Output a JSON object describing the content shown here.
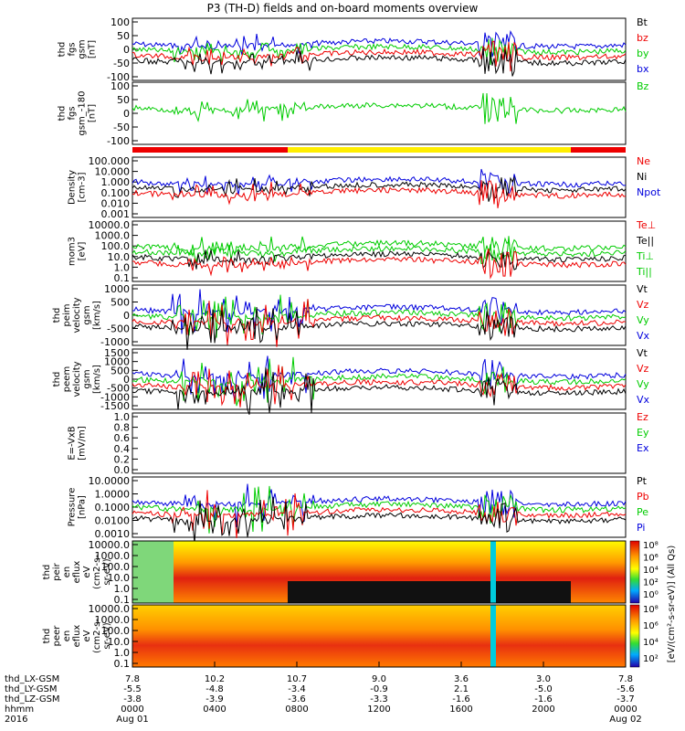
{
  "title": "P3 (TH-D) fields and on-board moments overview",
  "chart_data": {
    "type": "line",
    "title": "P3 (TH-D) fields and on-board moments overview",
    "time_ticks": [
      "0000",
      "0400",
      "0800",
      "1200",
      "1600",
      "2000",
      "0000"
    ],
    "date_start": "2016",
    "date_labels": [
      "Aug 01",
      "Aug 02"
    ],
    "position_rows": [
      {
        "label": "thd_LX-GSM",
        "values": [
          "7.8",
          "10.2",
          "10.7",
          "9.0",
          "3.6",
          "3.0",
          "7.8"
        ]
      },
      {
        "label": "thd_LY-GSM",
        "values": [
          "-5.5",
          "-4.8",
          "-3.4",
          "-0.9",
          "2.1",
          "-5.0",
          "-5.6"
        ]
      },
      {
        "label": "thd_LZ-GSM",
        "values": [
          "-3.8",
          "-3.9",
          "-3.6",
          "-3.3",
          "-1.6",
          "-1.6",
          "-3.7"
        ]
      },
      {
        "label": "hhmm",
        "values": [
          "0000",
          "0400",
          "0800",
          "1200",
          "1600",
          "2000",
          "0000"
        ]
      }
    ],
    "panels": [
      {
        "ylabel": [
          "thd",
          "fgs",
          "gsm",
          "[nT]"
        ],
        "ticks": [
          "100",
          "50",
          "0",
          "-50",
          "-100"
        ],
        "legend": [
          [
            "Bt",
            "#000"
          ],
          [
            "bz",
            "#e00"
          ],
          [
            "by",
            "#0c0"
          ],
          [
            "bx",
            "#00d"
          ]
        ]
      },
      {
        "ylabel": [
          "thd",
          "fgs",
          "gsm_-180",
          "[nT]"
        ],
        "ticks": [
          "100",
          "50",
          "0",
          "-50",
          "-100"
        ],
        "legend": [
          [
            "Bz",
            "#0c0"
          ]
        ]
      },
      {
        "ylabel": [
          "Density",
          "[cm-3]"
        ],
        "ticks": [
          "100.000",
          "10.000",
          "1.000",
          "0.100",
          "0.010",
          "0.001"
        ],
        "legend": [
          [
            "Ne",
            "#e00"
          ],
          [
            "Ni",
            "#000"
          ],
          [
            "Npot",
            "#00d"
          ]
        ]
      },
      {
        "ylabel": [
          "mom3",
          "[eV]"
        ],
        "ticks": [
          "10000.0",
          "1000.0",
          "100.0",
          "10.0",
          "1.0",
          "0.1"
        ],
        "legend": [
          [
            "Te⊥",
            "#e00"
          ],
          [
            "Te||",
            "#000"
          ],
          [
            "Ti⊥",
            "#0c0"
          ],
          [
            "Ti||",
            "#0c0"
          ]
        ]
      },
      {
        "ylabel": [
          "thd",
          "peim",
          "velocity",
          "gsm",
          "[km/s]"
        ],
        "ticks": [
          "1000",
          "500",
          "0",
          "-500",
          "-1000"
        ],
        "legend": [
          [
            "Vt",
            "#000"
          ],
          [
            "Vz",
            "#e00"
          ],
          [
            "Vy",
            "#0c0"
          ],
          [
            "Vx",
            "#00d"
          ]
        ]
      },
      {
        "ylabel": [
          "thd",
          "peem",
          "velocity",
          "gsm",
          "[km/s]"
        ],
        "ticks": [
          "1500",
          "1000",
          "500",
          "0",
          "-500",
          "-1000",
          "-1500"
        ],
        "legend": [
          [
            "Vt",
            "#000"
          ],
          [
            "Vz",
            "#e00"
          ],
          [
            "Vy",
            "#0c0"
          ],
          [
            "Vx",
            "#00d"
          ]
        ]
      },
      {
        "ylabel": [
          "E=-VxB",
          "[mV/m]"
        ],
        "ticks": [
          "1.0",
          "0.8",
          "0.6",
          "0.4",
          "0.2",
          "0.0"
        ],
        "legend": [
          [
            "Ez",
            "#e00"
          ],
          [
            "Ey",
            "#0c0"
          ],
          [
            "Ex",
            "#00d"
          ]
        ]
      },
      {
        "ylabel": [
          "Pressure",
          "[nPa]"
        ],
        "ticks": [
          "10.0000",
          "1.0000",
          "0.1000",
          "0.0100",
          "0.0010"
        ],
        "legend": [
          [
            "Pt",
            "#000"
          ],
          [
            "Pb",
            "#e00"
          ],
          [
            "Pe",
            "#0c0"
          ],
          [
            "Pi",
            "#00d"
          ]
        ]
      },
      {
        "ylabel": [
          "thd",
          "peir",
          "en",
          "eflux",
          "eV",
          "(cm2-s-",
          "sr-eV)"
        ],
        "ticks": [
          "10000.0",
          "1000.0",
          "100.0",
          "10.0",
          "1.0",
          "0.1"
        ],
        "legend": []
      },
      {
        "ylabel": [
          "thd",
          "peer",
          "en",
          "eflux",
          "eV",
          "(cm2-s-",
          "sr-eV)"
        ],
        "ticks": [
          "10000.0",
          "1000.0",
          "100.0",
          "10.0",
          "1.0",
          "0.1"
        ],
        "legend": []
      }
    ],
    "colorbars": [
      {
        "ticks": [
          "10⁸",
          "10⁶",
          "10⁴",
          "10²",
          "10⁰"
        ]
      },
      {
        "ticks": [
          "10⁸",
          "10⁶",
          "10⁴",
          "10²"
        ]
      }
    ],
    "colorbar_label": "[eV/(cm²-s-sr-eV)] (All Qs)"
  }
}
